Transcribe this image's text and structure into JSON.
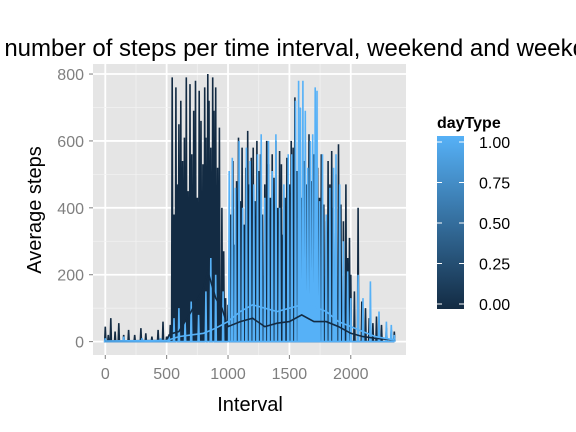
{
  "chart_data": {
    "type": "line",
    "title": "Average number of steps per time interval, weekend and weekday",
    "xlabel": "Interval",
    "ylabel": "Average steps",
    "xlim": [
      -100,
      2450
    ],
    "ylim": [
      -40,
      830
    ],
    "x_ticks": [
      0,
      500,
      1000,
      1500,
      2000
    ],
    "y_ticks": [
      0,
      200,
      400,
      600,
      800
    ],
    "grid": true,
    "legend": {
      "title": "dayType",
      "position": "right",
      "type": "colorbar",
      "ticks": [
        "1.00",
        "0.75",
        "0.50",
        "0.25",
        "0.00"
      ],
      "low_color": "#132B43",
      "high_color": "#56B1F7"
    },
    "series": [
      {
        "name": "0",
        "color": "#132B43",
        "peaks": [
          [
            0,
            45
          ],
          [
            25,
            20
          ],
          [
            45,
            70
          ],
          [
            80,
            30
          ],
          [
            110,
            55
          ],
          [
            150,
            20
          ],
          [
            190,
            35
          ],
          [
            240,
            20
          ],
          [
            290,
            40
          ],
          [
            330,
            25
          ],
          [
            380,
            15
          ],
          [
            430,
            35
          ],
          [
            470,
            60
          ],
          [
            500,
            15
          ],
          [
            530,
            50
          ],
          [
            545,
            790
          ],
          [
            560,
            380
          ],
          [
            575,
            760
          ],
          [
            585,
            470
          ],
          [
            600,
            650
          ],
          [
            615,
            720
          ],
          [
            630,
            540
          ],
          [
            645,
            610
          ],
          [
            660,
            790
          ],
          [
            675,
            450
          ],
          [
            690,
            770
          ],
          [
            705,
            560
          ],
          [
            720,
            690
          ],
          [
            735,
            780
          ],
          [
            750,
            430
          ],
          [
            765,
            750
          ],
          [
            780,
            660
          ],
          [
            795,
            530
          ],
          [
            810,
            760
          ],
          [
            820,
            610
          ],
          [
            835,
            800
          ],
          [
            845,
            720
          ],
          [
            860,
            580
          ],
          [
            875,
            790
          ],
          [
            885,
            690
          ],
          [
            900,
            760
          ],
          [
            915,
            520
          ],
          [
            930,
            640
          ],
          [
            950,
            400
          ],
          [
            965,
            270
          ],
          [
            980,
            130
          ],
          [
            1000,
            110
          ],
          [
            1010,
            250
          ],
          [
            1020,
            380
          ],
          [
            1040,
            540
          ],
          [
            1055,
            290
          ],
          [
            1070,
            480
          ],
          [
            1085,
            610
          ],
          [
            1100,
            420
          ],
          [
            1115,
            580
          ],
          [
            1130,
            350
          ],
          [
            1145,
            520
          ],
          [
            1160,
            630
          ],
          [
            1175,
            470
          ],
          [
            1190,
            550
          ],
          [
            1205,
            580
          ],
          [
            1220,
            420
          ],
          [
            1235,
            600
          ],
          [
            1250,
            510
          ],
          [
            1265,
            560
          ],
          [
            1280,
            380
          ],
          [
            1300,
            470
          ],
          [
            1315,
            600
          ],
          [
            1330,
            530
          ],
          [
            1345,
            430
          ],
          [
            1360,
            560
          ],
          [
            1375,
            490
          ],
          [
            1390,
            600
          ],
          [
            1405,
            400
          ],
          [
            1420,
            570
          ],
          [
            1435,
            530
          ],
          [
            1450,
            320
          ],
          [
            1465,
            430
          ],
          [
            1480,
            550
          ],
          [
            1500,
            470
          ],
          [
            1515,
            600
          ],
          [
            1530,
            580
          ],
          [
            1545,
            730
          ],
          [
            1560,
            510
          ],
          [
            1580,
            600
          ],
          [
            1600,
            430
          ],
          [
            1620,
            540
          ],
          [
            1640,
            470
          ],
          [
            1660,
            620
          ],
          [
            1680,
            480
          ],
          [
            1700,
            560
          ],
          [
            1715,
            390
          ],
          [
            1730,
            520
          ],
          [
            1745,
            430
          ],
          [
            1760,
            560
          ],
          [
            1780,
            410
          ],
          [
            1800,
            360
          ],
          [
            1815,
            540
          ],
          [
            1830,
            470
          ],
          [
            1845,
            570
          ],
          [
            1860,
            400
          ],
          [
            1880,
            500
          ],
          [
            1900,
            590
          ],
          [
            1920,
            410
          ],
          [
            1940,
            360
          ],
          [
            1960,
            470
          ],
          [
            1975,
            250
          ],
          [
            1990,
            310
          ],
          [
            2000,
            200
          ],
          [
            2030,
            150
          ],
          [
            2060,
            400
          ],
          [
            2090,
            120
          ],
          [
            2120,
            100
          ],
          [
            2150,
            70
          ],
          [
            2180,
            55
          ],
          [
            2210,
            75
          ],
          [
            2250,
            50
          ],
          [
            2290,
            40
          ],
          [
            2330,
            35
          ],
          [
            2355,
            30
          ]
        ],
        "mean": [
          [
            0,
            2
          ],
          [
            500,
            3
          ],
          [
            520,
            20
          ],
          [
            550,
            25
          ],
          [
            600,
            30
          ],
          [
            700,
            90
          ],
          [
            800,
            160
          ],
          [
            835,
            210
          ],
          [
            860,
            180
          ],
          [
            900,
            130
          ],
          [
            950,
            100
          ],
          [
            1000,
            45
          ],
          [
            1100,
            60
          ],
          [
            1200,
            70
          ],
          [
            1300,
            45
          ],
          [
            1400,
            55
          ],
          [
            1500,
            60
          ],
          [
            1600,
            80
          ],
          [
            1700,
            60
          ],
          [
            1800,
            60
          ],
          [
            1900,
            45
          ],
          [
            2000,
            25
          ],
          [
            2100,
            15
          ],
          [
            2200,
            10
          ],
          [
            2355,
            5
          ]
        ]
      },
      {
        "name": "1",
        "color": "#56B1F7",
        "peaks": [
          [
            0,
            10
          ],
          [
            150,
            15
          ],
          [
            300,
            10
          ],
          [
            450,
            10
          ],
          [
            520,
            15
          ],
          [
            560,
            70
          ],
          [
            600,
            100
          ],
          [
            650,
            60
          ],
          [
            700,
            120
          ],
          [
            760,
            80
          ],
          [
            820,
            150
          ],
          [
            860,
            250
          ],
          [
            900,
            200
          ],
          [
            960,
            150
          ],
          [
            1010,
            510
          ],
          [
            1035,
            550
          ],
          [
            1060,
            460
          ],
          [
            1090,
            600
          ],
          [
            1120,
            400
          ],
          [
            1150,
            580
          ],
          [
            1180,
            540
          ],
          [
            1210,
            470
          ],
          [
            1240,
            560
          ],
          [
            1270,
            620
          ],
          [
            1300,
            430
          ],
          [
            1330,
            600
          ],
          [
            1360,
            510
          ],
          [
            1390,
            620
          ],
          [
            1420,
            400
          ],
          [
            1455,
            470
          ],
          [
            1490,
            560
          ],
          [
            1520,
            560
          ],
          [
            1550,
            720
          ],
          [
            1575,
            780
          ],
          [
            1590,
            700
          ],
          [
            1610,
            780
          ],
          [
            1630,
            690
          ],
          [
            1650,
            520
          ],
          [
            1670,
            600
          ],
          [
            1690,
            620
          ],
          [
            1710,
            760
          ],
          [
            1725,
            750
          ],
          [
            1745,
            420
          ],
          [
            1770,
            560
          ],
          [
            1800,
            380
          ],
          [
            1830,
            460
          ],
          [
            1860,
            520
          ],
          [
            1880,
            560
          ],
          [
            1910,
            470
          ],
          [
            1940,
            300
          ],
          [
            1975,
            210
          ],
          [
            2000,
            130
          ],
          [
            2060,
            200
          ],
          [
            2100,
            130
          ],
          [
            2160,
            180
          ],
          [
            2230,
            90
          ],
          [
            2290,
            60
          ],
          [
            2330,
            50
          ],
          [
            2355,
            20
          ]
        ],
        "mean": [
          [
            0,
            2
          ],
          [
            500,
            3
          ],
          [
            600,
            15
          ],
          [
            700,
            20
          ],
          [
            800,
            25
          ],
          [
            900,
            40
          ],
          [
            1000,
            60
          ],
          [
            1100,
            90
          ],
          [
            1200,
            110
          ],
          [
            1300,
            100
          ],
          [
            1400,
            90
          ],
          [
            1500,
            100
          ],
          [
            1600,
            110
          ],
          [
            1700,
            105
          ],
          [
            1800,
            90
          ],
          [
            1900,
            60
          ],
          [
            2000,
            45
          ],
          [
            2100,
            30
          ],
          [
            2200,
            15
          ],
          [
            2355,
            5
          ]
        ]
      }
    ]
  }
}
